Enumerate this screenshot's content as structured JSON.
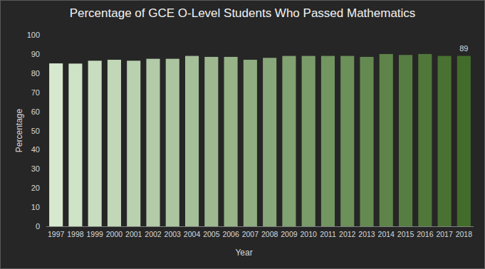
{
  "chart_data": {
    "type": "bar",
    "title": "Percentage of GCE O-Level Students Who Passed Mathematics",
    "x_label": "Year",
    "y_label": "Percentage",
    "categories": [
      "1997",
      "1998",
      "1999",
      "2000",
      "2001",
      "2002",
      "2003",
      "2004",
      "2005",
      "2006",
      "2007",
      "2008",
      "2009",
      "2010",
      "2011",
      "2012",
      "2013",
      "2014",
      "2015",
      "2016",
      "2017",
      "2018"
    ],
    "values": [
      85.1,
      85,
      86.5,
      87,
      86.5,
      87.5,
      87.5,
      89,
      88.5,
      88.5,
      87,
      88,
      89,
      89,
      89,
      89,
      88.5,
      90,
      89.5,
      90,
      89,
      89
    ],
    "colors": [
      "#d6e9cf",
      "#cfe3c7",
      "#c8ddbf",
      "#c1d7b7",
      "#bad1b0",
      "#b3cba8",
      "#acc5a0",
      "#a5bf98",
      "#9eb990",
      "#97b388",
      "#8fad80",
      "#88a879",
      "#81a271",
      "#7a9c69",
      "#739661",
      "#6c9059",
      "#658a51",
      "#5e8449",
      "#577e42",
      "#50783a",
      "#497232",
      "#426c2a"
    ],
    "annotations": [
      {
        "category": "2018",
        "text": "89"
      }
    ],
    "ylim": [
      0,
      100
    ],
    "yticks": [
      0,
      10,
      20,
      30,
      40,
      50,
      60,
      70,
      80,
      90,
      100
    ],
    "grid": false
  }
}
